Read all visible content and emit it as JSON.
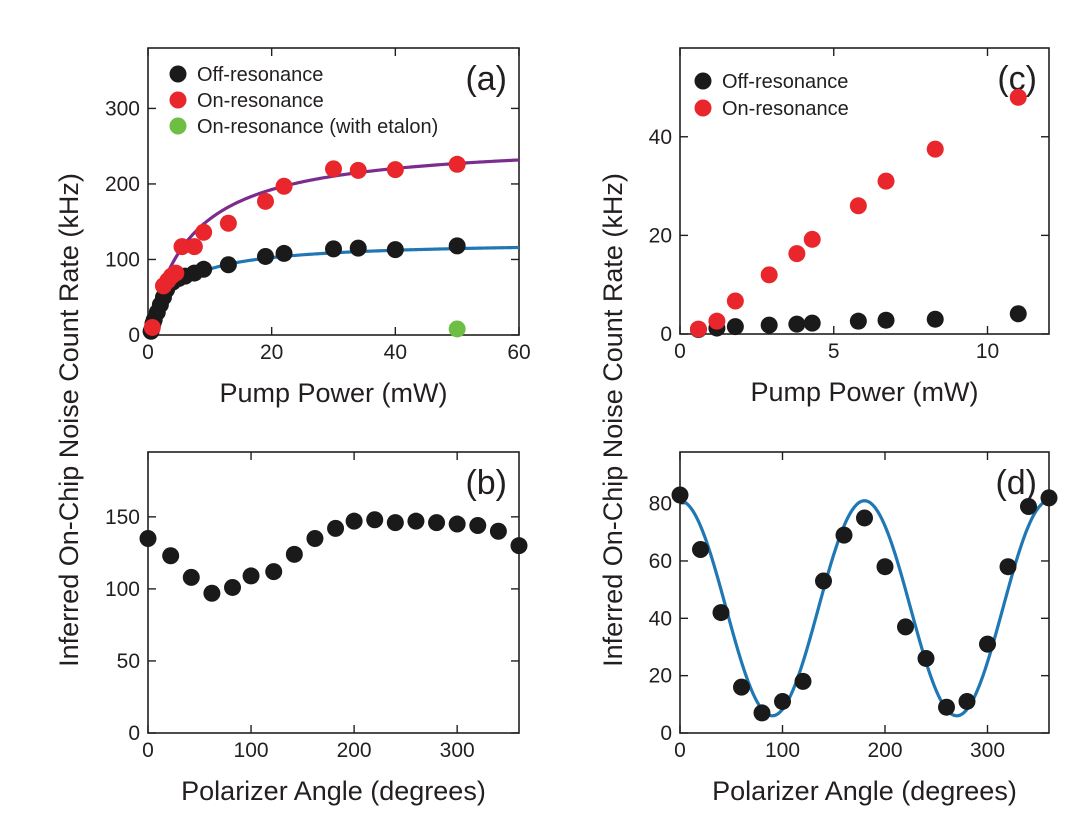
{
  "ylabel": "Inferred On-Chip Noise Count Rate (kHz)",
  "colors": {
    "off": "#1a1a1a",
    "on": "#e8262b",
    "etalon": "#6dbe45",
    "fit_on": "#7b2d8e",
    "fit_off": "#1f77b4",
    "fit_d": "#1f77b4"
  },
  "chart_data": [
    {
      "id": "a",
      "type": "scatter",
      "panel_label": "(a)",
      "xlabel": "Pump Power (mW)",
      "ylabel": "Inferred On-Chip Noise Count Rate (kHz)",
      "xlim": [
        0,
        60
      ],
      "ylim": [
        0,
        380
      ],
      "xticks": [
        0,
        20,
        40,
        60
      ],
      "yticks": [
        0,
        100,
        200,
        300
      ],
      "legend": "top-left",
      "series": [
        {
          "name": "Off-resonance",
          "color": "#1a1a1a",
          "points": [
            [
              0.5,
              5
            ],
            [
              0.8,
              15
            ],
            [
              1.0,
              20
            ],
            [
              1.5,
              30
            ],
            [
              2,
              40
            ],
            [
              2.5,
              50
            ],
            [
              3,
              60
            ],
            [
              4,
              70
            ],
            [
              5,
              75
            ],
            [
              6,
              78
            ],
            [
              7.5,
              82
            ],
            [
              9,
              87
            ],
            [
              13,
              93
            ],
            [
              19,
              104
            ],
            [
              22,
              108
            ],
            [
              30,
              114
            ],
            [
              34,
              115
            ],
            [
              40,
              113
            ],
            [
              50,
              118
            ]
          ]
        },
        {
          "name": "On-resonance",
          "color": "#e8262b",
          "points": [
            [
              0.7,
              10
            ],
            [
              2.5,
              65
            ],
            [
              3.2,
              72
            ],
            [
              3.8,
              78
            ],
            [
              4.5,
              82
            ],
            [
              5.5,
              117
            ],
            [
              7.5,
              117
            ],
            [
              9,
              136
            ],
            [
              13,
              148
            ],
            [
              19,
              177
            ],
            [
              22,
              197
            ],
            [
              30,
              220
            ],
            [
              34,
              218
            ],
            [
              40,
              219
            ],
            [
              50,
              226
            ]
          ]
        },
        {
          "name": "On-resonance (with etalon)",
          "color": "#6dbe45",
          "points": [
            [
              50,
              8
            ]
          ]
        }
      ],
      "fits": [
        {
          "color": "#7b2d8e",
          "model": "saturation",
          "a": 258,
          "b": 6.8
        },
        {
          "color": "#1f77b4",
          "model": "saturation",
          "a": 124,
          "b": 4.2
        }
      ]
    },
    {
      "id": "b",
      "type": "scatter",
      "panel_label": "(b)",
      "xlabel": "Polarizer Angle (degrees)",
      "ylabel": "Inferred On-Chip Noise Count Rate (kHz)",
      "xlim": [
        0,
        360
      ],
      "ylim": [
        0,
        195
      ],
      "xticks": [
        0,
        100,
        200,
        300
      ],
      "yticks": [
        0,
        50,
        100,
        150
      ],
      "series": [
        {
          "name": "",
          "color": "#1a1a1a",
          "points": [
            [
              0,
              135
            ],
            [
              22,
              123
            ],
            [
              42,
              108
            ],
            [
              62,
              97
            ],
            [
              82,
              101
            ],
            [
              100,
              109
            ],
            [
              122,
              112
            ],
            [
              142,
              124
            ],
            [
              162,
              135
            ],
            [
              182,
              142
            ],
            [
              200,
              147
            ],
            [
              220,
              148
            ],
            [
              240,
              146
            ],
            [
              260,
              147
            ],
            [
              280,
              146
            ],
            [
              300,
              145
            ],
            [
              320,
              144
            ],
            [
              340,
              140
            ],
            [
              360,
              130
            ]
          ]
        }
      ]
    },
    {
      "id": "c",
      "type": "scatter",
      "panel_label": "(c)",
      "xlabel": "Pump Power (mW)",
      "ylabel": "Inferred On-Chip Noise Count Rate (kHz)",
      "xlim": [
        0,
        12
      ],
      "ylim": [
        0,
        58
      ],
      "xticks": [
        0,
        5,
        10
      ],
      "yticks": [
        0,
        20,
        40
      ],
      "legend": "top-left",
      "series": [
        {
          "name": "Off-resonance",
          "color": "#1a1a1a",
          "points": [
            [
              0.6,
              0.9
            ],
            [
              1.2,
              1.2
            ],
            [
              1.8,
              1.5
            ],
            [
              2.9,
              1.8
            ],
            [
              3.8,
              2.0
            ],
            [
              4.3,
              2.2
            ],
            [
              5.8,
              2.6
            ],
            [
              6.7,
              2.8
            ],
            [
              8.3,
              3.0
            ],
            [
              11,
              4.1
            ]
          ]
        },
        {
          "name": "On-resonance",
          "color": "#e8262b",
          "points": [
            [
              0.6,
              1.0
            ],
            [
              1.2,
              2.6
            ],
            [
              1.8,
              6.7
            ],
            [
              2.9,
              12
            ],
            [
              3.8,
              16.3
            ],
            [
              4.3,
              19.2
            ],
            [
              5.8,
              26
            ],
            [
              6.7,
              31
            ],
            [
              8.3,
              37.5
            ],
            [
              11,
              48
            ]
          ]
        }
      ]
    },
    {
      "id": "d",
      "type": "scatter",
      "panel_label": "(d)",
      "xlabel": "Polarizer Angle (degrees)",
      "ylabel": "Inferred On-Chip Noise Count Rate (kHz)",
      "xlim": [
        0,
        360
      ],
      "ylim": [
        0,
        98
      ],
      "xticks": [
        0,
        100,
        200,
        300
      ],
      "yticks": [
        0,
        20,
        40,
        60,
        80
      ],
      "series": [
        {
          "name": "",
          "color": "#1a1a1a",
          "points": [
            [
              0,
              83
            ],
            [
              20,
              64
            ],
            [
              40,
              42
            ],
            [
              60,
              16
            ],
            [
              80,
              7
            ],
            [
              100,
              11
            ],
            [
              120,
              18
            ],
            [
              140,
              53
            ],
            [
              160,
              69
            ],
            [
              180,
              75
            ],
            [
              200,
              58
            ],
            [
              220,
              37
            ],
            [
              240,
              26
            ],
            [
              260,
              9
            ],
            [
              280,
              11
            ],
            [
              300,
              31
            ],
            [
              320,
              58
            ],
            [
              340,
              79
            ],
            [
              360,
              82
            ]
          ]
        }
      ],
      "fits": [
        {
          "color": "#1f77b4",
          "model": "cos2",
          "offset": 6,
          "amplitude": 75,
          "period": 180
        }
      ]
    }
  ]
}
